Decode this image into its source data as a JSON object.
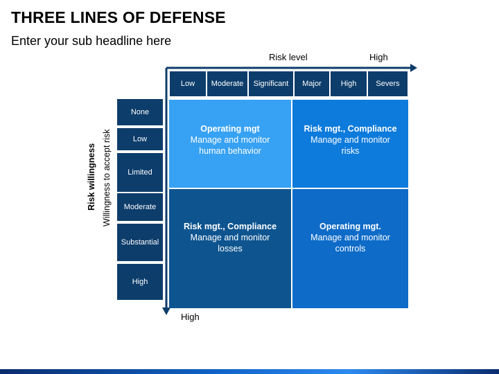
{
  "title": "THREE LINES OF DEFENSE",
  "subtitle": "Enter your sub headline here",
  "x_axis": {
    "label": "Risk level",
    "end_label": "High"
  },
  "y_axis": {
    "label": "Risk willingness",
    "sublabel": "Willingness to accept risk",
    "end_label": "High"
  },
  "columns": [
    "Low",
    "Moderate",
    "Significant",
    "Major",
    "High",
    "Severs"
  ],
  "rows": [
    "None",
    "Low",
    "Limited",
    "Moderate",
    "Substantial",
    "High"
  ],
  "quadrants": {
    "top_left": {
      "title": "Operating mgt",
      "line1": "Manage and monitor",
      "line2": "human behavior"
    },
    "top_right": {
      "title": "Risk mgt., Compliance",
      "line1": "Manage and monitor",
      "line2": "risks"
    },
    "bottom_left": {
      "title": "Risk mgt., Compliance",
      "line1": "Manage and monitor",
      "line2": "losses"
    },
    "bottom_right": {
      "title": "Operating mgt.",
      "line1": "Manage and monitor",
      "line2": "controls"
    }
  },
  "colors": {
    "header": "#0d3d6b",
    "quad_top_left": "#37a2f4",
    "quad_top_right": "#0d7bdc",
    "quad_bottom_left": "#0e5590",
    "quad_bottom_right": "#0e6bc8",
    "arrow": "#0d3d6b"
  }
}
